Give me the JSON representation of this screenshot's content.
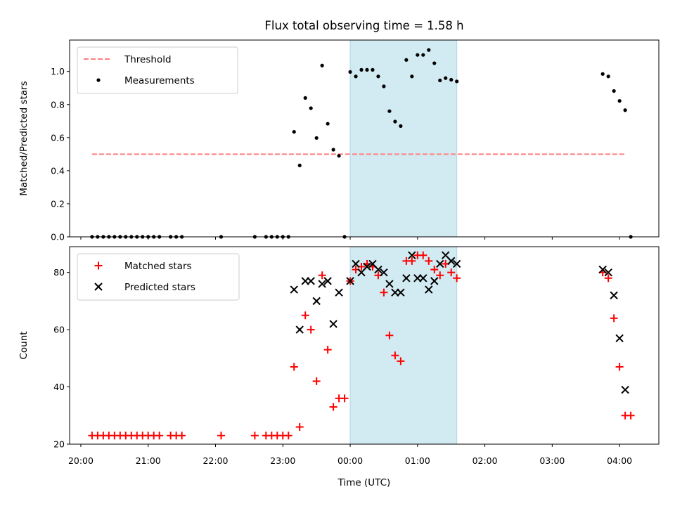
{
  "chart_data": {
    "type": "scatter",
    "title": "Flux total observing time = 1.58 h",
    "xlabel": "Time (UTC)",
    "x_ticks": [
      "20:00",
      "21:00",
      "22:00",
      "23:00",
      "00:00",
      "01:00",
      "02:00",
      "03:00",
      "04:00"
    ],
    "x_range": [
      "19:50",
      "04:35"
    ],
    "highlight_span": {
      "start": "00:00",
      "end": "01:35",
      "color": "#add8e6"
    },
    "panels": [
      {
        "ylabel": "Matched/Predicted stars",
        "ylim": [
          0,
          1.19
        ],
        "y_ticks": [
          "0.0",
          "0.2",
          "0.4",
          "0.6",
          "0.8",
          "1.0"
        ],
        "y_tick_values": [
          0,
          0.2,
          0.4,
          0.6,
          0.8,
          1.0
        ],
        "legend": {
          "position": "upper left",
          "entries": [
            "Threshold",
            "Measurements"
          ]
        },
        "threshold": {
          "name": "Threshold",
          "value": 0.5,
          "x_start": "20:10",
          "x_end": "04:05",
          "color": "#ff7f7f"
        },
        "series": [
          {
            "name": "Measurements",
            "marker": "dot",
            "color": "#000000",
            "points": [
              [
                "20:10",
                0
              ],
              [
                "20:15",
                0
              ],
              [
                "20:20",
                0
              ],
              [
                "20:25",
                0
              ],
              [
                "20:30",
                0
              ],
              [
                "20:35",
                0
              ],
              [
                "20:40",
                0
              ],
              [
                "20:45",
                0
              ],
              [
                "20:50",
                0
              ],
              [
                "20:55",
                0
              ],
              [
                "21:00",
                0
              ],
              [
                "21:05",
                0
              ],
              [
                "21:10",
                0
              ],
              [
                "21:20",
                0
              ],
              [
                "21:25",
                0
              ],
              [
                "21:30",
                0
              ],
              [
                "22:05",
                0
              ],
              [
                "22:35",
                0
              ],
              [
                "22:45",
                0
              ],
              [
                "22:50",
                0
              ],
              [
                "22:55",
                0
              ],
              [
                "23:00",
                0
              ],
              [
                "23:05",
                0
              ],
              [
                "23:10",
                0.635
              ],
              [
                "23:15",
                0.432
              ],
              [
                "23:20",
                0.84
              ],
              [
                "23:25",
                0.778
              ],
              [
                "23:30",
                0.598
              ],
              [
                "23:35",
                1.036
              ],
              [
                "23:40",
                0.684
              ],
              [
                "23:45",
                0.527
              ],
              [
                "23:50",
                0.49
              ],
              [
                "23:55",
                0
              ],
              [
                "00:00",
                0.997
              ],
              [
                "00:05",
                0.97
              ],
              [
                "00:10",
                1.01
              ],
              [
                "00:15",
                1.01
              ],
              [
                "00:20",
                1.01
              ],
              [
                "00:25",
                0.97
              ],
              [
                "00:30",
                0.91
              ],
              [
                "00:35",
                0.76
              ],
              [
                "00:40",
                0.697
              ],
              [
                "00:45",
                0.67
              ],
              [
                "00:50",
                1.07
              ],
              [
                "00:55",
                0.97
              ],
              [
                "01:00",
                1.1
              ],
              [
                "01:05",
                1.1
              ],
              [
                "01:10",
                1.13
              ],
              [
                "01:15",
                1.05
              ],
              [
                "01:20",
                0.946
              ],
              [
                "01:25",
                0.96
              ],
              [
                "01:30",
                0.95
              ],
              [
                "01:35",
                0.94
              ],
              [
                "03:45",
                0.985
              ],
              [
                "03:50",
                0.97
              ],
              [
                "03:55",
                0.882
              ],
              [
                "04:00",
                0.822
              ],
              [
                "04:05",
                0.766
              ],
              [
                "04:10",
                0
              ]
            ]
          }
        ]
      },
      {
        "ylabel": "Count",
        "ylim": [
          20,
          89
        ],
        "y_ticks": [
          "20",
          "40",
          "60",
          "80"
        ],
        "y_tick_values": [
          20,
          40,
          60,
          80
        ],
        "legend": {
          "position": "upper left",
          "entries": [
            "Matched stars",
            "Predicted stars"
          ]
        },
        "series": [
          {
            "name": "Matched stars",
            "marker": "plus",
            "color": "#ff0000",
            "points": [
              [
                "20:10",
                23
              ],
              [
                "20:15",
                23
              ],
              [
                "20:20",
                23
              ],
              [
                "20:25",
                23
              ],
              [
                "20:30",
                23
              ],
              [
                "20:35",
                23
              ],
              [
                "20:40",
                23
              ],
              [
                "20:45",
                23
              ],
              [
                "20:50",
                23
              ],
              [
                "20:55",
                23
              ],
              [
                "21:00",
                23
              ],
              [
                "21:05",
                23
              ],
              [
                "21:10",
                23
              ],
              [
                "21:20",
                23
              ],
              [
                "21:25",
                23
              ],
              [
                "21:30",
                23
              ],
              [
                "22:05",
                23
              ],
              [
                "22:35",
                23
              ],
              [
                "22:45",
                23
              ],
              [
                "22:50",
                23
              ],
              [
                "22:55",
                23
              ],
              [
                "23:00",
                23
              ],
              [
                "23:05",
                23
              ],
              [
                "23:10",
                47
              ],
              [
                "23:15",
                26
              ],
              [
                "23:20",
                65
              ],
              [
                "23:25",
                60
              ],
              [
                "23:30",
                42
              ],
              [
                "23:35",
                79
              ],
              [
                "23:40",
                53
              ],
              [
                "23:45",
                33
              ],
              [
                "23:50",
                36
              ],
              [
                "23:55",
                36
              ],
              [
                "00:00",
                77
              ],
              [
                "00:05",
                81
              ],
              [
                "00:10",
                82
              ],
              [
                "00:15",
                83
              ],
              [
                "00:20",
                82
              ],
              [
                "00:25",
                79
              ],
              [
                "00:30",
                73
              ],
              [
                "00:35",
                58
              ],
              [
                "00:40",
                51
              ],
              [
                "00:45",
                49
              ],
              [
                "00:50",
                84
              ],
              [
                "00:55",
                84
              ],
              [
                "01:00",
                86
              ],
              [
                "01:05",
                86
              ],
              [
                "01:10",
                84
              ],
              [
                "01:15",
                81
              ],
              [
                "01:20",
                79
              ],
              [
                "01:25",
                83
              ],
              [
                "01:30",
                80
              ],
              [
                "01:35",
                78
              ],
              [
                "03:45",
                80
              ],
              [
                "03:50",
                78
              ],
              [
                "03:55",
                64
              ],
              [
                "04:00",
                47
              ],
              [
                "04:05",
                30
              ],
              [
                "04:10",
                30
              ]
            ]
          },
          {
            "name": "Predicted stars",
            "marker": "x",
            "color": "#000000",
            "points": [
              [
                "23:10",
                74
              ],
              [
                "23:15",
                60
              ],
              [
                "23:20",
                77
              ],
              [
                "23:25",
                77
              ],
              [
                "23:30",
                70
              ],
              [
                "23:35",
                76
              ],
              [
                "23:40",
                77
              ],
              [
                "23:45",
                62
              ],
              [
                "23:50",
                73
              ],
              [
                "00:00",
                77
              ],
              [
                "00:05",
                83
              ],
              [
                "00:10",
                80
              ],
              [
                "00:15",
                82
              ],
              [
                "00:20",
                83
              ],
              [
                "00:25",
                81
              ],
              [
                "00:30",
                80
              ],
              [
                "00:35",
                76
              ],
              [
                "00:40",
                73
              ],
              [
                "00:45",
                73
              ],
              [
                "00:50",
                78
              ],
              [
                "00:55",
                86
              ],
              [
                "01:00",
                78
              ],
              [
                "01:05",
                78
              ],
              [
                "01:10",
                74
              ],
              [
                "01:15",
                77
              ],
              [
                "01:20",
                83
              ],
              [
                "01:25",
                86
              ],
              [
                "01:30",
                84
              ],
              [
                "01:35",
                83
              ],
              [
                "03:45",
                81
              ],
              [
                "03:50",
                80
              ],
              [
                "03:55",
                72
              ],
              [
                "04:00",
                57
              ],
              [
                "04:05",
                39
              ]
            ]
          }
        ]
      }
    ]
  }
}
